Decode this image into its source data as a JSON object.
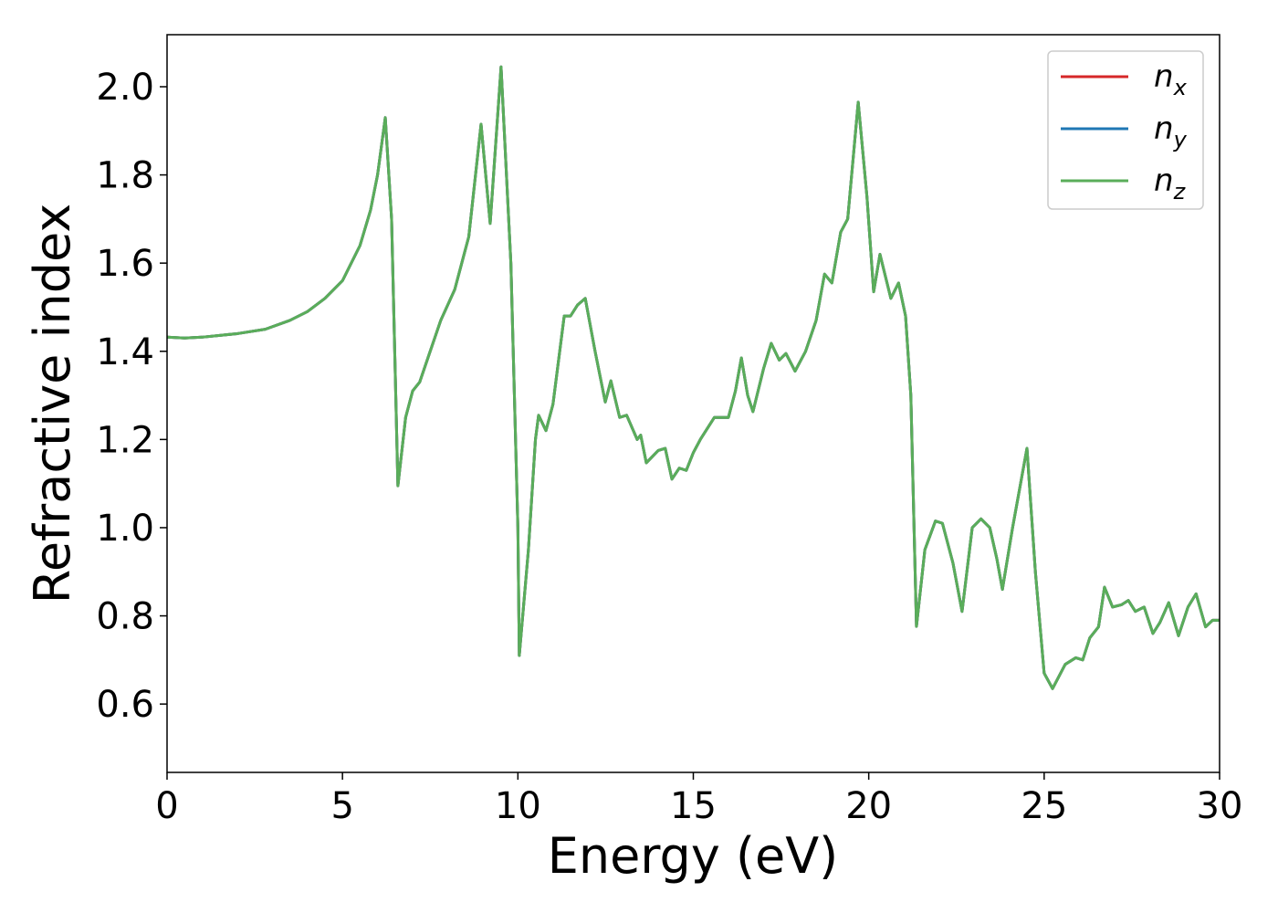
{
  "chart_data": {
    "type": "line",
    "xlabel": "Energy (eV)",
    "ylabel": "Refractive index",
    "xlim": [
      0,
      30
    ],
    "ylim": [
      0.445,
      2.118
    ],
    "xticks": [
      0,
      5,
      10,
      15,
      20,
      25,
      30
    ],
    "yticks": [
      0.6,
      0.8,
      {
        "value": 1,
        "label": "1.0"
      },
      1.2,
      1.4,
      1.6,
      1.8,
      {
        "value": 2,
        "label": "2.0"
      }
    ],
    "legend": "upper right",
    "x": [
      0,
      0.5,
      1,
      2,
      2.8,
      3.5,
      4,
      4.5,
      5,
      5.5,
      5.8,
      6,
      6.22,
      6.4,
      6.58,
      6.8,
      7,
      7.2,
      7.5,
      7.8,
      8.2,
      8.6,
      8.95,
      9.21,
      9.52,
      9.8,
      10,
      10.04,
      10.3,
      10.5,
      10.59,
      10.8,
      11,
      11.32,
      11.5,
      11.7,
      11.92,
      12.2,
      12.49,
      12.65,
      12.9,
      13.1,
      13.4,
      13.5,
      13.66,
      14,
      14.2,
      14.39,
      14.6,
      14.8,
      15,
      15.2,
      15.6,
      16,
      16.2,
      16.37,
      16.55,
      16.7,
      17,
      17.22,
      17.45,
      17.64,
      17.9,
      18.2,
      18.5,
      18.74,
      18.95,
      19.2,
      19.4,
      19.7,
      19.95,
      20.14,
      20.32,
      20.63,
      20.85,
      21.05,
      21.2,
      21.36,
      21.6,
      21.9,
      22.1,
      22.4,
      22.66,
      22.95,
      23.2,
      23.45,
      23.65,
      23.81,
      24.1,
      24.51,
      24.75,
      25,
      25.24,
      25.6,
      25.9,
      26.1,
      26.3,
      26.55,
      26.72,
      26.95,
      27.2,
      27.4,
      27.6,
      27.85,
      28.1,
      28.3,
      28.55,
      28.83,
      29.1,
      29.33,
      29.6,
      29.8,
      30
    ],
    "series": [
      {
        "name": "nx",
        "color": "#d62728",
        "values": [
          1.432,
          1.43,
          1.432,
          1.44,
          1.45,
          1.47,
          1.49,
          1.52,
          1.56,
          1.64,
          1.72,
          1.8,
          1.93,
          1.7,
          1.095,
          1.25,
          1.31,
          1.33,
          1.4,
          1.47,
          1.54,
          1.66,
          1.915,
          1.69,
          2.045,
          1.6,
          1.0,
          0.71,
          0.95,
          1.2,
          1.255,
          1.22,
          1.28,
          1.48,
          1.48,
          1.505,
          1.52,
          1.4,
          1.285,
          1.333,
          1.25,
          1.255,
          1.2,
          1.21,
          1.147,
          1.175,
          1.18,
          1.11,
          1.135,
          1.13,
          1.17,
          1.2,
          1.25,
          1.25,
          1.31,
          1.385,
          1.3,
          1.263,
          1.36,
          1.418,
          1.38,
          1.395,
          1.355,
          1.4,
          1.47,
          1.575,
          1.555,
          1.67,
          1.7,
          1.965,
          1.75,
          1.535,
          1.62,
          1.52,
          1.555,
          1.48,
          1.3,
          0.776,
          0.95,
          1.015,
          1.01,
          0.92,
          0.81,
          1.0,
          1.02,
          1.0,
          0.93,
          0.86,
          1.0,
          1.18,
          0.9,
          0.67,
          0.635,
          0.69,
          0.705,
          0.7,
          0.75,
          0.775,
          0.865,
          0.82,
          0.825,
          0.835,
          0.81,
          0.82,
          0.76,
          0.785,
          0.83,
          0.755,
          0.82,
          0.85,
          0.775,
          0.79,
          0.79
        ]
      },
      {
        "name": "ny",
        "color": "#1f77b4",
        "values": [
          1.432,
          1.43,
          1.432,
          1.44,
          1.45,
          1.47,
          1.49,
          1.52,
          1.56,
          1.64,
          1.72,
          1.8,
          1.93,
          1.7,
          1.095,
          1.25,
          1.31,
          1.33,
          1.4,
          1.47,
          1.54,
          1.66,
          1.915,
          1.69,
          2.045,
          1.6,
          1.0,
          0.71,
          0.95,
          1.2,
          1.255,
          1.22,
          1.28,
          1.48,
          1.48,
          1.505,
          1.52,
          1.4,
          1.285,
          1.333,
          1.25,
          1.255,
          1.2,
          1.21,
          1.147,
          1.175,
          1.18,
          1.11,
          1.135,
          1.13,
          1.17,
          1.2,
          1.25,
          1.25,
          1.31,
          1.385,
          1.3,
          1.263,
          1.36,
          1.418,
          1.38,
          1.395,
          1.355,
          1.4,
          1.47,
          1.575,
          1.555,
          1.67,
          1.7,
          1.965,
          1.75,
          1.535,
          1.62,
          1.52,
          1.555,
          1.48,
          1.3,
          0.776,
          0.95,
          1.015,
          1.01,
          0.92,
          0.81,
          1.0,
          1.02,
          1.0,
          0.93,
          0.86,
          1.0,
          1.18,
          0.9,
          0.67,
          0.635,
          0.69,
          0.705,
          0.7,
          0.75,
          0.775,
          0.865,
          0.82,
          0.825,
          0.835,
          0.81,
          0.82,
          0.76,
          0.785,
          0.83,
          0.755,
          0.82,
          0.85,
          0.775,
          0.79,
          0.79
        ]
      },
      {
        "name": "nz",
        "color": "#5aad5a",
        "values": [
          1.432,
          1.43,
          1.432,
          1.44,
          1.45,
          1.47,
          1.49,
          1.52,
          1.56,
          1.64,
          1.72,
          1.8,
          1.93,
          1.7,
          1.095,
          1.25,
          1.31,
          1.33,
          1.4,
          1.47,
          1.54,
          1.66,
          1.915,
          1.69,
          2.045,
          1.6,
          1.0,
          0.71,
          0.95,
          1.2,
          1.255,
          1.22,
          1.28,
          1.48,
          1.48,
          1.505,
          1.52,
          1.4,
          1.285,
          1.333,
          1.25,
          1.255,
          1.2,
          1.21,
          1.147,
          1.175,
          1.18,
          1.11,
          1.135,
          1.13,
          1.17,
          1.2,
          1.25,
          1.25,
          1.31,
          1.385,
          1.3,
          1.263,
          1.36,
          1.418,
          1.38,
          1.395,
          1.355,
          1.4,
          1.47,
          1.575,
          1.555,
          1.67,
          1.7,
          1.965,
          1.75,
          1.535,
          1.62,
          1.52,
          1.555,
          1.48,
          1.3,
          0.776,
          0.95,
          1.015,
          1.01,
          0.92,
          0.81,
          1.0,
          1.02,
          1.0,
          0.93,
          0.86,
          1.0,
          1.18,
          0.9,
          0.67,
          0.635,
          0.69,
          0.705,
          0.7,
          0.75,
          0.775,
          0.865,
          0.82,
          0.825,
          0.835,
          0.81,
          0.82,
          0.76,
          0.785,
          0.83,
          0.755,
          0.82,
          0.85,
          0.775,
          0.79,
          0.79
        ]
      }
    ]
  }
}
